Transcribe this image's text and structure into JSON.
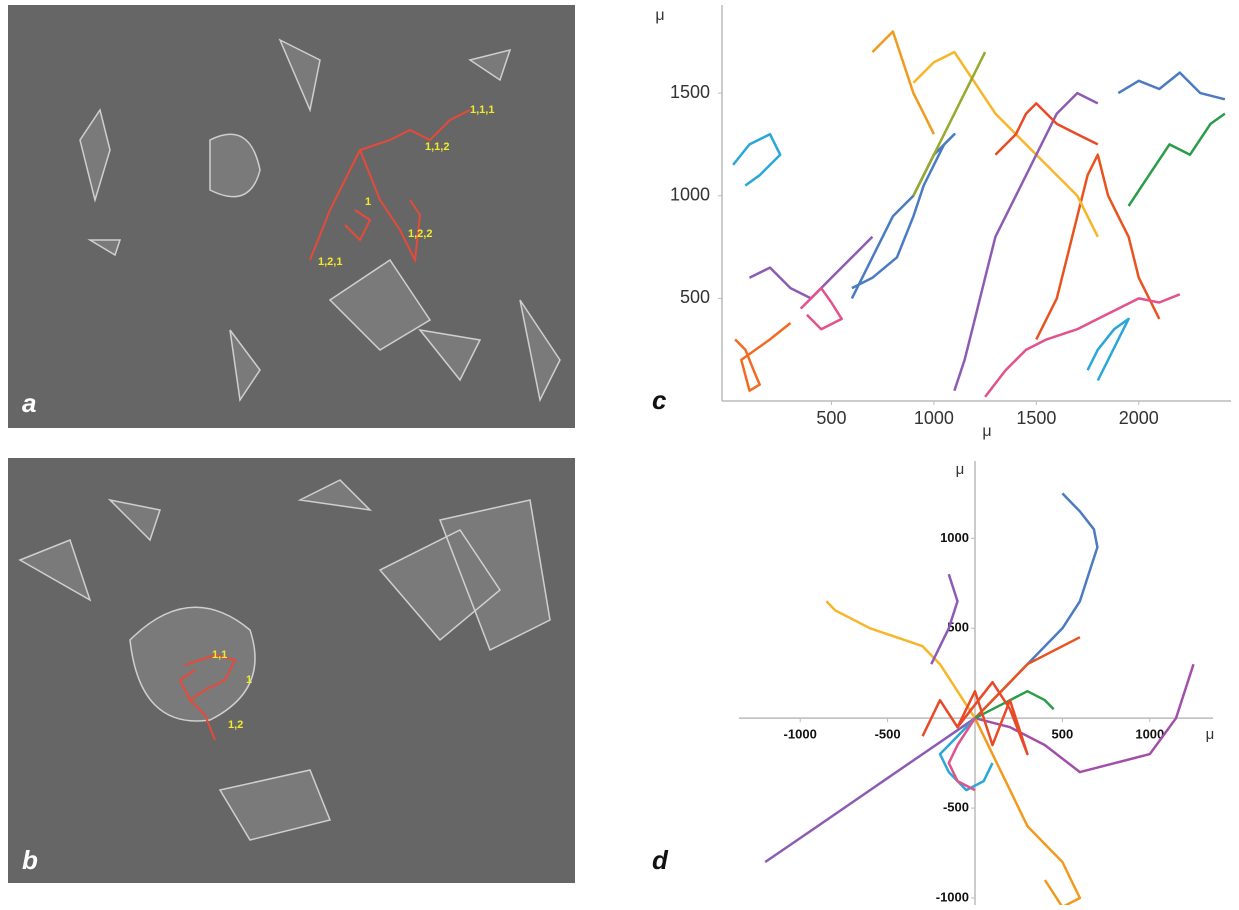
{
  "images": [
    {
      "panel": "a",
      "annotations": [
        "1,1,1",
        "1,1,2",
        "1",
        "1,2,2",
        "1,2,1"
      ]
    },
    {
      "panel": "b",
      "annotations": [
        "1,1",
        "1",
        "1,2"
      ]
    }
  ],
  "chart_data": [
    {
      "type": "line",
      "panel": "c",
      "x_label": "μ",
      "y_label": "μ",
      "xlim": [
        0,
        2450
      ],
      "ylim": [
        0,
        1900
      ],
      "xticks": [
        500,
        1000,
        1500,
        2000
      ],
      "yticks": [
        500,
        1000,
        1500
      ],
      "series": [
        {
          "color": "#4b7bc0",
          "x": [
            600,
            700,
            820,
            900,
            950,
            1000,
            1050,
            1100,
            1000,
            900,
            800,
            700,
            600
          ],
          "values": [
            550,
            600,
            700,
            900,
            1050,
            1150,
            1250,
            1300,
            1200,
            1000,
            900,
            700,
            500
          ]
        },
        {
          "color": "#4b7bc0",
          "x": [
            1900,
            2000,
            2100,
            2200,
            2300,
            2420
          ],
          "values": [
            1500,
            1560,
            1520,
            1600,
            1500,
            1470
          ]
        },
        {
          "color": "#f26b21",
          "x": [
            30,
            80,
            120,
            150,
            100,
            60,
            200,
            300
          ],
          "values": [
            300,
            250,
            150,
            80,
            50,
            200,
            300,
            380
          ]
        },
        {
          "color": "#e8531f",
          "x": [
            1500,
            1600,
            1650,
            1700,
            1750,
            1800,
            1850,
            1900,
            1950,
            2000,
            2100
          ],
          "values": [
            300,
            500,
            700,
            900,
            1100,
            1200,
            1000,
            900,
            800,
            600,
            400
          ]
        },
        {
          "color": "#f7b52a",
          "x": [
            900,
            1000,
            1100,
            1200,
            1300,
            1400,
            1500,
            1600,
            1700,
            1800
          ],
          "values": [
            1550,
            1650,
            1700,
            1550,
            1400,
            1300,
            1200,
            1100,
            1000,
            800
          ]
        },
        {
          "color": "#f29a1e",
          "x": [
            700,
            750,
            800,
            850,
            900,
            950,
            1000
          ],
          "values": [
            1700,
            1750,
            1800,
            1650,
            1500,
            1400,
            1300
          ]
        },
        {
          "color": "#2aa7d8",
          "x": [
            20,
            100,
            200,
            250,
            150,
            80
          ],
          "values": [
            1150,
            1250,
            1300,
            1200,
            1100,
            1050
          ]
        },
        {
          "color": "#2aa7d8",
          "x": [
            1800,
            1850,
            1900,
            1950,
            1880,
            1800,
            1750
          ],
          "values": [
            100,
            200,
            300,
            400,
            350,
            250,
            150
          ]
        },
        {
          "color": "#2a9d4a",
          "x": [
            1950,
            2050,
            2150,
            2250,
            2350,
            2420
          ],
          "values": [
            950,
            1100,
            1250,
            1200,
            1350,
            1400
          ]
        },
        {
          "color": "#8c5cb4",
          "x": [
            1100,
            1150,
            1200,
            1250,
            1300,
            1400,
            1500,
            1600,
            1700,
            1800
          ],
          "values": [
            50,
            200,
            400,
            600,
            800,
            1000,
            1200,
            1400,
            1500,
            1450
          ]
        },
        {
          "color": "#8c5cb4",
          "x": [
            100,
            200,
            300,
            400,
            500,
            600,
            700
          ],
          "values": [
            600,
            650,
            550,
            500,
            600,
            700,
            800
          ]
        },
        {
          "color": "#e2528c",
          "x": [
            1250,
            1350,
            1450,
            1550,
            1700,
            1800,
            1900,
            2000,
            2100,
            2200
          ],
          "values": [
            20,
            150,
            250,
            300,
            350,
            400,
            450,
            500,
            480,
            520
          ]
        },
        {
          "color": "#e2528c",
          "x": [
            350,
            400,
            450,
            500,
            550,
            450,
            380
          ],
          "values": [
            450,
            500,
            550,
            480,
            400,
            350,
            420
          ]
        },
        {
          "color": "#97aa2b",
          "x": [
            900,
            950,
            1000,
            1050,
            1100,
            1150,
            1200,
            1250
          ],
          "values": [
            1000,
            1100,
            1200,
            1300,
            1400,
            1500,
            1600,
            1700
          ]
        },
        {
          "color": "#e84a27",
          "x": [
            1300,
            1400,
            1450,
            1500,
            1600,
            1700,
            1800
          ],
          "values": [
            1200,
            1300,
            1400,
            1450,
            1350,
            1300,
            1250
          ]
        }
      ]
    },
    {
      "type": "line",
      "panel": "d",
      "x_label": "μ",
      "y_label": "μ",
      "xlim": [
        -1350,
        1350
      ],
      "ylim": [
        -1050,
        1430
      ],
      "xticks": [
        -1000,
        -500,
        500,
        1000
      ],
      "yticks": [
        1000,
        500,
        -500,
        -1000
      ],
      "series": [
        {
          "color": "#4b7bc0",
          "x": [
            0,
            100,
            200,
            300,
            400,
            500,
            600,
            650,
            700,
            680,
            600,
            550,
            500
          ],
          "values": [
            0,
            100,
            200,
            300,
            400,
            500,
            650,
            800,
            950,
            1050,
            1150,
            1200,
            1250
          ]
        },
        {
          "color": "#8c5cb4",
          "x": [
            0,
            -150,
            -300,
            -450,
            -600,
            -750,
            -900,
            -1050,
            -1200
          ],
          "values": [
            0,
            -100,
            -200,
            -300,
            -400,
            -500,
            -600,
            -700,
            -800
          ]
        },
        {
          "color": "#a14fa8",
          "x": [
            0,
            200,
            400,
            600,
            800,
            1000,
            1150,
            1250
          ],
          "values": [
            0,
            -50,
            -150,
            -300,
            -250,
            -200,
            0,
            300
          ]
        },
        {
          "color": "#f7b52a",
          "x": [
            0,
            -100,
            -200,
            -300,
            -450,
            -600,
            -700,
            -800,
            -850
          ],
          "values": [
            0,
            150,
            300,
            400,
            450,
            500,
            550,
            600,
            650
          ]
        },
        {
          "color": "#f29a1e",
          "x": [
            0,
            100,
            200,
            300,
            400,
            500,
            550,
            600,
            500,
            400
          ],
          "values": [
            0,
            -200,
            -400,
            -600,
            -700,
            -800,
            -900,
            -1000,
            -1050,
            -900
          ]
        },
        {
          "color": "#e8531f",
          "x": [
            0,
            100,
            200,
            300,
            400,
            500,
            600
          ],
          "values": [
            0,
            100,
            200,
            300,
            350,
            400,
            450
          ]
        },
        {
          "color": "#2a9d4a",
          "x": [
            0,
            100,
            200,
            300,
            400,
            450
          ],
          "values": [
            0,
            50,
            100,
            150,
            100,
            50
          ]
        },
        {
          "color": "#2aa7d8",
          "x": [
            0,
            -100,
            -200,
            -150,
            -50,
            50,
            100
          ],
          "values": [
            0,
            -100,
            -200,
            -300,
            -400,
            -350,
            -250
          ]
        },
        {
          "color": "#e84a27",
          "x": [
            -300,
            -200,
            -100,
            0,
            100,
            200,
            300,
            200,
            100,
            -100
          ],
          "values": [
            -100,
            100,
            -50,
            150,
            -150,
            100,
            -200,
            50,
            200,
            -50
          ]
        },
        {
          "color": "#8c5cb4",
          "x": [
            -250,
            -200,
            -150,
            -100,
            -150
          ],
          "values": [
            300,
            400,
            500,
            650,
            800
          ]
        },
        {
          "color": "#e2528c",
          "x": [
            0,
            -100,
            -150,
            -100,
            0
          ],
          "values": [
            0,
            -150,
            -250,
            -350,
            -400
          ]
        }
      ]
    }
  ]
}
